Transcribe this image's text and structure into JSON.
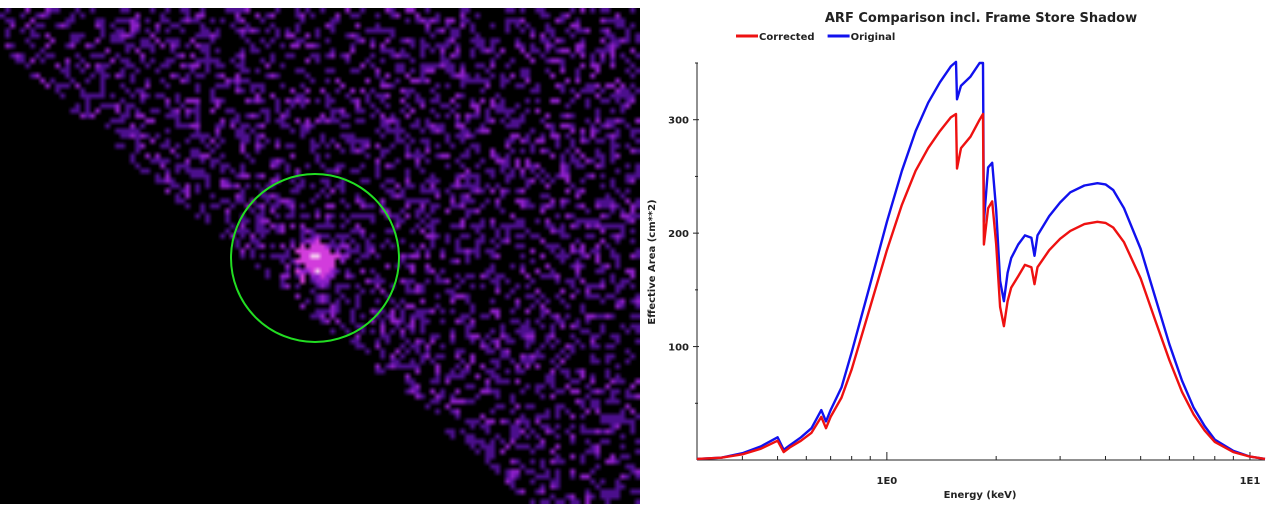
{
  "image_panel": {
    "description_colors": {
      "background": "#000000",
      "pixel_dim": "#4b0f8c",
      "pixel_mid": "#8c1fc8",
      "pixel_bright": "#d23cdc",
      "pixel_peak": "#f5c8f0"
    },
    "region_color": "#22dd22"
  },
  "chart_data": {
    "type": "line",
    "title": "ARF Comparison incl. Frame Store Shadow",
    "xlabel": "Energy (keV)",
    "ylabel": "Effective Area (cm**2)",
    "xscale": "log",
    "xlim": [
      0.3,
      11.0
    ],
    "ylim": [
      0,
      350
    ],
    "yticks": [
      100,
      200,
      300
    ],
    "xtick_labels": [
      {
        "value": 1,
        "label": "1E0"
      },
      {
        "value": 10,
        "label": "1E1"
      }
    ],
    "legend_position": "top-left",
    "grid": false,
    "series": [
      {
        "name": "Corrected",
        "color": "#ee1111",
        "x": [
          0.3,
          0.35,
          0.4,
          0.45,
          0.5,
          0.52,
          0.54,
          0.58,
          0.62,
          0.66,
          0.68,
          0.7,
          0.75,
          0.8,
          0.9,
          1.0,
          1.1,
          1.2,
          1.3,
          1.4,
          1.5,
          1.55,
          1.56,
          1.6,
          1.7,
          1.8,
          1.84,
          1.85,
          1.9,
          1.95,
          2.0,
          2.05,
          2.1,
          2.15,
          2.2,
          2.3,
          2.4,
          2.5,
          2.55,
          2.6,
          2.8,
          3.0,
          3.2,
          3.5,
          3.8,
          4.0,
          4.2,
          4.5,
          5.0,
          5.5,
          6.0,
          6.5,
          7.0,
          7.5,
          8.0,
          9.0,
          10.0,
          11.0
        ],
        "y": [
          1,
          2,
          5,
          10,
          17,
          7,
          11,
          17,
          24,
          38,
          28,
          38,
          55,
          80,
          135,
          185,
          225,
          255,
          275,
          290,
          302,
          305,
          257,
          275,
          285,
          300,
          305,
          190,
          222,
          228,
          190,
          135,
          118,
          140,
          152,
          162,
          172,
          170,
          155,
          170,
          185,
          195,
          202,
          208,
          210,
          209,
          205,
          192,
          160,
          122,
          88,
          60,
          40,
          26,
          16,
          7,
          3,
          1
        ]
      },
      {
        "name": "Original",
        "color": "#1111ee",
        "x": [
          0.3,
          0.35,
          0.4,
          0.45,
          0.5,
          0.52,
          0.54,
          0.58,
          0.62,
          0.66,
          0.68,
          0.7,
          0.75,
          0.8,
          0.9,
          1.0,
          1.1,
          1.2,
          1.3,
          1.4,
          1.5,
          1.55,
          1.56,
          1.6,
          1.7,
          1.8,
          1.84,
          1.85,
          1.9,
          1.95,
          2.0,
          2.05,
          2.1,
          2.15,
          2.2,
          2.3,
          2.4,
          2.5,
          2.55,
          2.6,
          2.8,
          3.0,
          3.2,
          3.5,
          3.8,
          4.0,
          4.2,
          4.5,
          5.0,
          5.5,
          6.0,
          6.5,
          7.0,
          7.5,
          8.0,
          9.0,
          10.0,
          11.0
        ],
        "y": [
          1,
          2,
          6,
          12,
          20,
          9,
          13,
          20,
          28,
          44,
          34,
          44,
          64,
          95,
          155,
          210,
          255,
          290,
          315,
          333,
          347,
          351,
          318,
          330,
          338,
          350,
          350,
          210,
          258,
          262,
          220,
          158,
          140,
          165,
          178,
          190,
          198,
          196,
          180,
          198,
          215,
          227,
          236,
          242,
          244,
          243,
          238,
          222,
          186,
          142,
          102,
          70,
          46,
          30,
          18,
          8,
          3,
          1
        ]
      }
    ]
  }
}
